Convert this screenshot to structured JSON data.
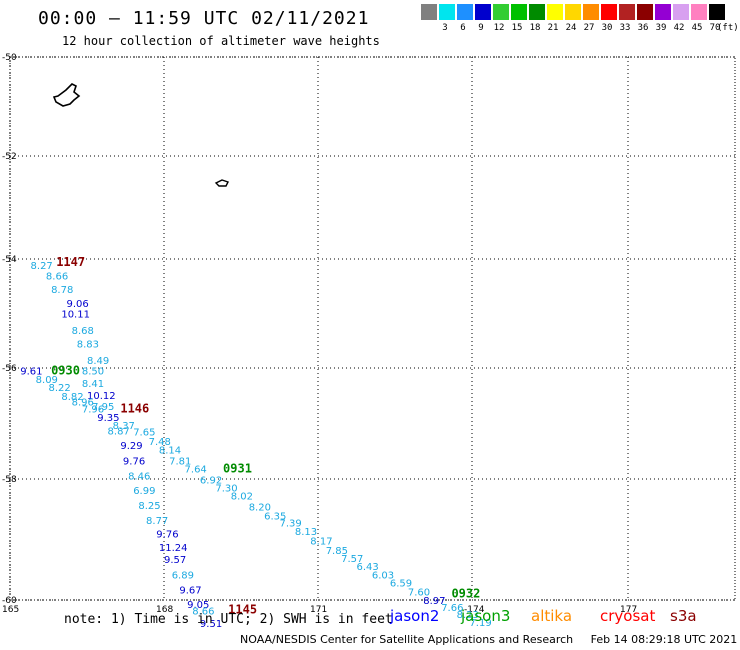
{
  "title": "00:00 – 11:59 UTC 02/11/2021",
  "subtitle": "12 hour collection of altimeter wave heights",
  "legend": {
    "unit": "(ft)",
    "bins": [
      {
        "label": "3",
        "color": "#808080"
      },
      {
        "label": "6",
        "color": "#00e5ee"
      },
      {
        "label": "9",
        "color": "#1e90ff"
      },
      {
        "label": "12",
        "color": "#0000cd"
      },
      {
        "label": "15",
        "color": "#32cd32"
      },
      {
        "label": "18",
        "color": "#00c000"
      },
      {
        "label": "21",
        "color": "#008b00"
      },
      {
        "label": "24",
        "color": "#ffff00"
      },
      {
        "label": "27",
        "color": "#ffd700"
      },
      {
        "label": "30",
        "color": "#ff8c00"
      },
      {
        "label": "33",
        "color": "#ff0000"
      },
      {
        "label": "36",
        "color": "#b22222"
      },
      {
        "label": "39",
        "color": "#8b0000"
      },
      {
        "label": "42",
        "color": "#9400d3"
      },
      {
        "label": "45",
        "color": "#d8a0f0"
      },
      {
        "label": "70",
        "color": "#ff80c0"
      },
      {
        "label": "",
        "color": "#000000"
      }
    ]
  },
  "map": {
    "lat_labels": [
      "-50",
      "-52",
      "-54",
      "-56",
      "-58",
      "-60"
    ],
    "lon_labels": [
      "165",
      "168",
      "171",
      "-174",
      "177"
    ]
  },
  "waves": [
    {
      "t": "8.27",
      "c": "#1ca9e0",
      "lat": -53.9,
      "lon": 165.4
    },
    {
      "t": "8.66",
      "c": "#1ca9e0",
      "lat": -54.1,
      "lon": 165.7
    },
    {
      "t": "8.78",
      "c": "#1ca9e0",
      "lat": -54.35,
      "lon": 165.8
    },
    {
      "t": "9.06",
      "c": "#0000cd",
      "lat": -54.6,
      "lon": 166.1
    },
    {
      "t": "10.11",
      "c": "#0000cd",
      "lat": -54.8,
      "lon": 166.0
    },
    {
      "t": "8.68",
      "c": "#1ca9e0",
      "lat": -55.1,
      "lon": 166.2
    },
    {
      "t": "8.83",
      "c": "#1ca9e0",
      "lat": -55.35,
      "lon": 166.3
    },
    {
      "t": "8.49",
      "c": "#1ca9e0",
      "lat": -55.65,
      "lon": 166.5
    },
    {
      "t": "9.61",
      "c": "#0000cd",
      "lat": -55.85,
      "lon": 165.2
    },
    {
      "t": "8.50",
      "c": "#1ca9e0",
      "lat": -55.85,
      "lon": 166.4
    },
    {
      "t": "8.09",
      "c": "#1ca9e0",
      "lat": -56.0,
      "lon": 165.5
    },
    {
      "t": "8.41",
      "c": "#1ca9e0",
      "lat": -56.08,
      "lon": 166.4
    },
    {
      "t": "8.22",
      "c": "#1ca9e0",
      "lat": -56.15,
      "lon": 165.75
    },
    {
      "t": "10.12",
      "c": "#0000cd",
      "lat": -56.3,
      "lon": 166.5
    },
    {
      "t": "8.82",
      "c": "#1ca9e0",
      "lat": -56.32,
      "lon": 166.0
    },
    {
      "t": "8.96",
      "c": "#1ca9e0",
      "lat": -56.42,
      "lon": 166.2
    },
    {
      "t": "7.95",
      "c": "#1ca9e0",
      "lat": -56.5,
      "lon": 166.6
    },
    {
      "t": "7.96",
      "c": "#1ca9e0",
      "lat": -56.55,
      "lon": 166.4
    },
    {
      "t": "9.35",
      "c": "#0000cd",
      "lat": -56.7,
      "lon": 166.7
    },
    {
      "t": "8.37",
      "c": "#1ca9e0",
      "lat": -56.85,
      "lon": 167.0
    },
    {
      "t": "8.87",
      "c": "#1ca9e0",
      "lat": -56.95,
      "lon": 166.9
    },
    {
      "t": "7.65",
      "c": "#1ca9e0",
      "lat": -56.97,
      "lon": 167.4
    },
    {
      "t": "7.48",
      "c": "#1ca9e0",
      "lat": -57.15,
      "lon": 167.7
    },
    {
      "t": "9.29",
      "c": "#0000cd",
      "lat": -57.22,
      "lon": 167.15
    },
    {
      "t": "8.14",
      "c": "#1ca9e0",
      "lat": -57.3,
      "lon": 167.9
    },
    {
      "t": "7.81",
      "c": "#1ca9e0",
      "lat": -57.5,
      "lon": 168.1
    },
    {
      "t": "9.76",
      "c": "#0000cd",
      "lat": -57.5,
      "lon": 167.2
    },
    {
      "t": "7.64",
      "c": "#1ca9e0",
      "lat": -57.65,
      "lon": 168.4
    },
    {
      "t": "8.46",
      "c": "#1ca9e0",
      "lat": -57.78,
      "lon": 167.3
    },
    {
      "t": "6.92",
      "c": "#1ca9e0",
      "lat": -57.85,
      "lon": 168.7
    },
    {
      "t": "7.30",
      "c": "#1ca9e0",
      "lat": -58.0,
      "lon": 169.0
    },
    {
      "t": "6.99",
      "c": "#1ca9e0",
      "lat": -58.05,
      "lon": 167.4
    },
    {
      "t": "8.02",
      "c": "#1ca9e0",
      "lat": -58.15,
      "lon": 169.3
    },
    {
      "t": "8.25",
      "c": "#1ca9e0",
      "lat": -58.32,
      "lon": 167.5
    },
    {
      "t": "8.20",
      "c": "#1ca9e0",
      "lat": -58.35,
      "lon": 169.65
    },
    {
      "t": "6.35",
      "c": "#1ca9e0",
      "lat": -58.52,
      "lon": 169.95
    },
    {
      "t": "8.77",
      "c": "#1ca9e0",
      "lat": -58.6,
      "lon": 167.65
    },
    {
      "t": "7.39",
      "c": "#1ca9e0",
      "lat": -58.65,
      "lon": 170.25
    },
    {
      "t": "8.13",
      "c": "#1ca9e0",
      "lat": -58.8,
      "lon": 170.55
    },
    {
      "t": "9.76",
      "c": "#0000cd",
      "lat": -58.85,
      "lon": 167.85
    },
    {
      "t": "8.17",
      "c": "#1ca9e0",
      "lat": -58.98,
      "lon": 170.85
    },
    {
      "t": "11.24",
      "c": "#0000cd",
      "lat": -59.1,
      "lon": 167.9
    },
    {
      "t": "7.85",
      "c": "#1ca9e0",
      "lat": -59.15,
      "lon": 171.15
    },
    {
      "t": "7.57",
      "c": "#1ca9e0",
      "lat": -59.3,
      "lon": 171.45
    },
    {
      "t": "9.57",
      "c": "#0000cd",
      "lat": -59.32,
      "lon": 168.0
    },
    {
      "t": "6.43",
      "c": "#1ca9e0",
      "lat": -59.45,
      "lon": 171.75
    },
    {
      "t": "6.89",
      "c": "#1ca9e0",
      "lat": -59.6,
      "lon": 168.15
    },
    {
      "t": "6.03",
      "c": "#1ca9e0",
      "lat": -59.6,
      "lon": 172.05
    },
    {
      "t": "6.59",
      "c": "#1ca9e0",
      "lat": -59.75,
      "lon": 172.4
    },
    {
      "t": "9.67",
      "c": "#0000cd",
      "lat": -59.88,
      "lon": 168.3
    },
    {
      "t": "7.60",
      "c": "#1ca9e0",
      "lat": -59.92,
      "lon": 172.75
    },
    {
      "t": "8.97",
      "c": "#0000cd",
      "lat": -60.07,
      "lon": 173.05
    },
    {
      "t": "9.05",
      "c": "#0000cd",
      "lat": -60.15,
      "lon": 168.45
    },
    {
      "t": "7.66",
      "c": "#1ca9e0",
      "lat": -60.2,
      "lon": 173.4
    },
    {
      "t": "8.66",
      "c": "#1ca9e0",
      "lat": -60.27,
      "lon": 168.55
    },
    {
      "t": "8.23",
      "c": "#1ca9e0",
      "lat": -60.33,
      "lon": 173.7
    },
    {
      "t": "7.19",
      "c": "#1ca9e0",
      "lat": -60.48,
      "lon": 173.95
    },
    {
      "t": "9.51",
      "c": "#0000cd",
      "lat": -60.5,
      "lon": 168.7
    }
  ],
  "passes": [
    {
      "t": "1147",
      "c": "#8b0000",
      "lat": -53.85,
      "lon": 165.9
    },
    {
      "t": "0930",
      "c": "#008b00",
      "lat": -55.85,
      "lon": 165.8
    },
    {
      "t": "1146",
      "c": "#8b0000",
      "lat": -56.55,
      "lon": 167.15
    },
    {
      "t": "0931",
      "c": "#008b00",
      "lat": -57.65,
      "lon": 169.15
    },
    {
      "t": "1145",
      "c": "#8b0000",
      "lat": -60.25,
      "lon": 169.25
    },
    {
      "t": "0932",
      "c": "#008b00",
      "lat": -59.95,
      "lon": 173.6
    }
  ],
  "note": "note: 1) Time is in UTC; 2) SWH is in feet",
  "satellites": [
    {
      "name": "jason2",
      "color": "#0000ff"
    },
    {
      "name": "jason3",
      "color": "#00a000"
    },
    {
      "name": "altika",
      "color": "#ff8c00"
    },
    {
      "name": "cryosat",
      "color": "#ff0000"
    },
    {
      "name": "s3a",
      "color": "#8b0000"
    }
  ],
  "credit_left": "NOAA/NESDIS Center for Satellite Applications and Research",
  "credit_right": "Feb 14 08:29:18 UTC 2021"
}
